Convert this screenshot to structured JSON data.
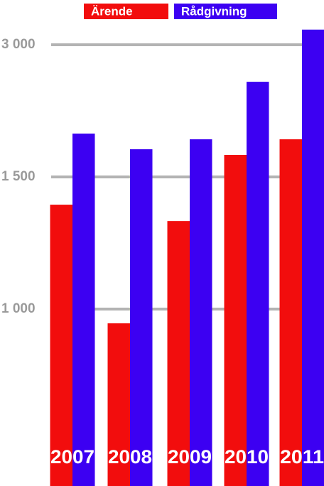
{
  "chart_data": {
    "type": "bar",
    "categories": [
      "2007",
      "2008",
      "2009",
      "2010",
      "2011"
    ],
    "series": [
      {
        "name": "Ärende",
        "color": "#f20d0d",
        "values": [
          1395,
          946,
          1333,
          1750,
          1927
        ]
      },
      {
        "name": "Rådgivning",
        "color": "#3c00f2",
        "values": [
          1992,
          1814,
          1927,
          2580,
          3169
        ]
      }
    ],
    "ylim": [
      330,
      3500
    ],
    "yticks": [
      {
        "value": 1000,
        "label": "1 000"
      },
      {
        "value": 1500,
        "label": "1 500"
      },
      {
        "value": 3000,
        "label": "3 000"
      }
    ],
    "grid": true
  }
}
